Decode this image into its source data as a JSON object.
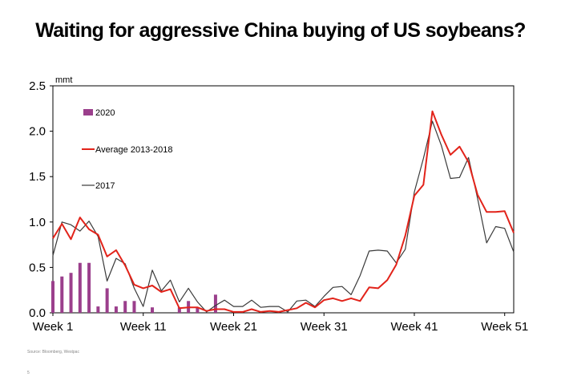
{
  "title": "Waiting for aggressive China buying of US soybeans?",
  "source": "Source: Bloomberg, Westpac",
  "page_number": "5",
  "colors": {
    "s2020": "#9b3f8c",
    "average": "#e2231a",
    "y2017": "#3a3a3a"
  },
  "chart_data": {
    "type": "bar+line",
    "title": "Waiting for aggressive China buying of US soybeans?",
    "ylabel": "mmt",
    "xlabel": "",
    "ylim": [
      0,
      2.5
    ],
    "yticks": [
      "0.0",
      "0.5",
      "1.0",
      "1.5",
      "2.0",
      "2.5"
    ],
    "xlim": [
      1,
      52
    ],
    "xticks": [
      {
        "week": 1,
        "label": "Week 1"
      },
      {
        "week": 11,
        "label": "Week 11"
      },
      {
        "week": 21,
        "label": "Week 21"
      },
      {
        "week": 31,
        "label": "Week 31"
      },
      {
        "week": 41,
        "label": "Week 41"
      },
      {
        "week": 51,
        "label": "Week 51"
      }
    ],
    "series": [
      {
        "name": "2020",
        "type": "bar",
        "x": [
          1,
          2,
          3,
          4,
          5,
          6,
          7,
          8,
          9,
          10,
          11,
          12,
          13,
          14,
          15,
          16,
          17,
          18,
          19
        ],
        "values": [
          0.35,
          0.4,
          0.44,
          0.55,
          0.55,
          0.07,
          0.27,
          0.07,
          0.13,
          0.13,
          0,
          0.06,
          0,
          0,
          0.06,
          0.13,
          0.06,
          0,
          0.2
        ]
      },
      {
        "name": "Average 2013-2018",
        "type": "line",
        "x": [
          1,
          2,
          3,
          4,
          5,
          6,
          7,
          8,
          9,
          10,
          11,
          12,
          13,
          14,
          15,
          16,
          17,
          18,
          19,
          20,
          21,
          22,
          23,
          24,
          25,
          26,
          27,
          28,
          29,
          30,
          31,
          32,
          33,
          34,
          35,
          36,
          37,
          38,
          39,
          40,
          41,
          42,
          43,
          44,
          45,
          46,
          47,
          48,
          49,
          50,
          51,
          52
        ],
        "values": [
          0.82,
          0.98,
          0.81,
          1.05,
          0.92,
          0.86,
          0.62,
          0.69,
          0.52,
          0.31,
          0.27,
          0.3,
          0.23,
          0.26,
          0.05,
          0.06,
          0.06,
          0.02,
          0.04,
          0.04,
          0.01,
          0.01,
          0.04,
          0.01,
          0.02,
          0.01,
          0.03,
          0.05,
          0.11,
          0.06,
          0.14,
          0.16,
          0.13,
          0.16,
          0.13,
          0.28,
          0.27,
          0.36,
          0.53,
          0.85,
          1.29,
          1.41,
          2.22,
          1.96,
          1.74,
          1.83,
          1.66,
          1.3,
          1.11,
          1.11,
          1.12,
          0.88
        ]
      },
      {
        "name": "2017",
        "type": "line",
        "x": [
          1,
          2,
          3,
          4,
          5,
          6,
          7,
          8,
          9,
          10,
          11,
          12,
          13,
          14,
          15,
          16,
          17,
          18,
          19,
          20,
          21,
          22,
          23,
          24,
          25,
          26,
          27,
          28,
          29,
          30,
          31,
          32,
          33,
          34,
          35,
          36,
          37,
          38,
          39,
          40,
          41,
          42,
          43,
          44,
          45,
          46,
          47,
          48,
          49,
          50,
          51,
          52
        ],
        "values": [
          0.63,
          1.0,
          0.97,
          0.9,
          1.01,
          0.84,
          0.35,
          0.6,
          0.54,
          0.27,
          0.07,
          0.47,
          0.24,
          0.36,
          0.12,
          0.27,
          0.12,
          0.01,
          0.08,
          0.14,
          0.07,
          0.07,
          0.14,
          0.06,
          0.07,
          0.07,
          0.01,
          0.13,
          0.14,
          0.07,
          0.18,
          0.28,
          0.29,
          0.2,
          0.41,
          0.68,
          0.69,
          0.68,
          0.55,
          0.7,
          1.33,
          1.7,
          2.11,
          1.84,
          1.48,
          1.49,
          1.71,
          1.26,
          0.77,
          0.95,
          0.93,
          0.67
        ]
      }
    ],
    "legend": [
      {
        "name": "2020",
        "marker": "bar"
      },
      {
        "name": "Average 2013-2018",
        "marker": "line"
      },
      {
        "name": "2017",
        "marker": "line"
      }
    ],
    "legend_position": "top-left",
    "grid": false
  }
}
